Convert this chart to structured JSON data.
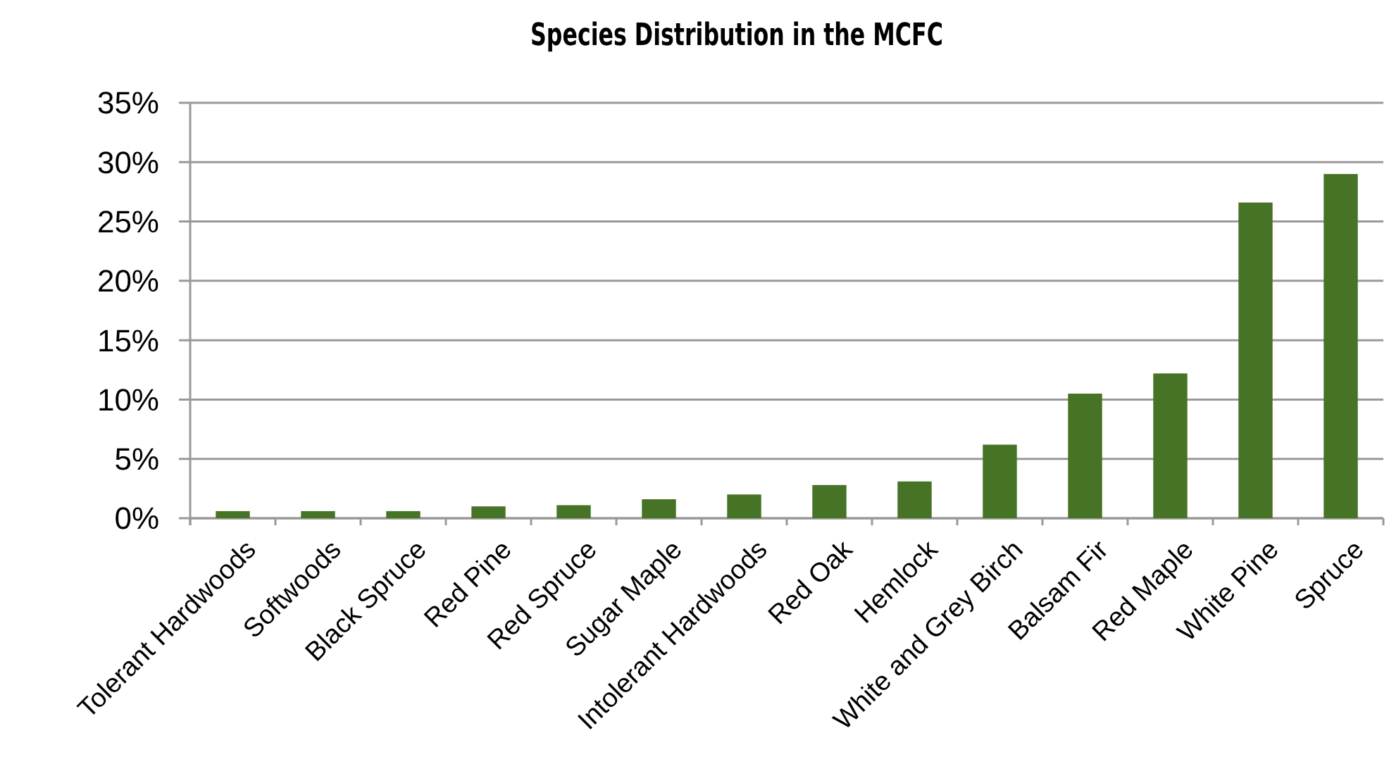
{
  "chart_data": {
    "type": "bar",
    "title": "Species Distribution in the MCFC",
    "categories": [
      "Tolerant Hardwoods",
      "Softwoods",
      "Black Spruce",
      "Red Pine",
      "Red Spruce",
      "Sugar Maple",
      "Intolerant Hardwoods",
      "Red Oak",
      "Hemlock",
      "White and Grey Birch",
      "Balsam Fir",
      "Red Maple",
      "White Pine",
      "Spruce"
    ],
    "values": [
      0.6,
      0.6,
      0.6,
      1.0,
      1.1,
      1.6,
      2.0,
      2.8,
      3.1,
      6.2,
      10.5,
      12.2,
      26.6,
      29.0
    ],
    "color": "#467325",
    "ylim": [
      0,
      35
    ],
    "yticks": [
      {
        "value": 0,
        "label": "0%"
      },
      {
        "value": 5,
        "label": "5%"
      },
      {
        "value": 10,
        "label": "10%"
      },
      {
        "value": 15,
        "label": "15%"
      },
      {
        "value": 20,
        "label": "20%"
      },
      {
        "value": 25,
        "label": "25%"
      },
      {
        "value": 30,
        "label": "30%"
      },
      {
        "value": 35,
        "label": "35%"
      }
    ],
    "grid": "y"
  }
}
